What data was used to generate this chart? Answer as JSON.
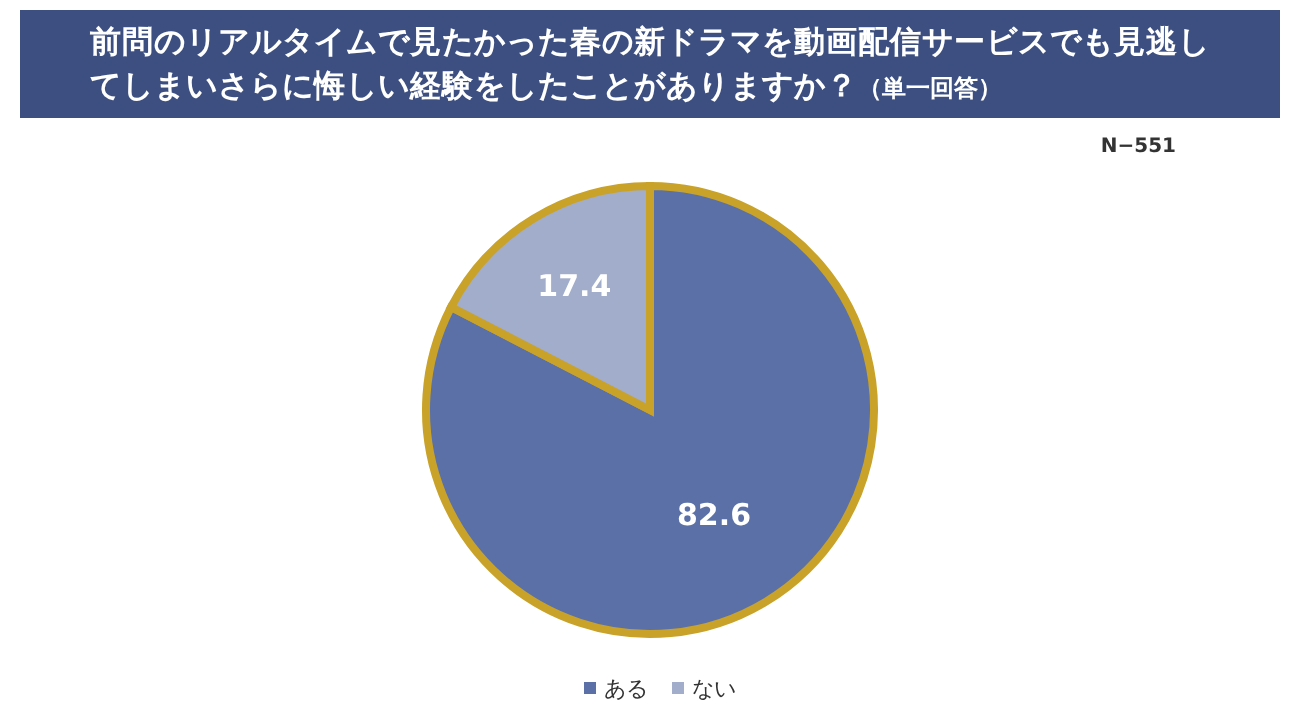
{
  "chart_data": {
    "type": "pie",
    "title": "前問のリアルタイムで見たかった春の新ドラマを動画配信サービスでも見逃してしまいさらに悔しい経験をしたことがありますか？",
    "subtitle": "（単一回答）",
    "annotations": [
      "N−551"
    ],
    "categories": [
      "ある",
      "ない"
    ],
    "values": [
      82.6,
      17.4
    ],
    "colors": [
      "#5a70a6",
      "#a1adcb"
    ],
    "data_labels": true,
    "legend": "bottom"
  }
}
